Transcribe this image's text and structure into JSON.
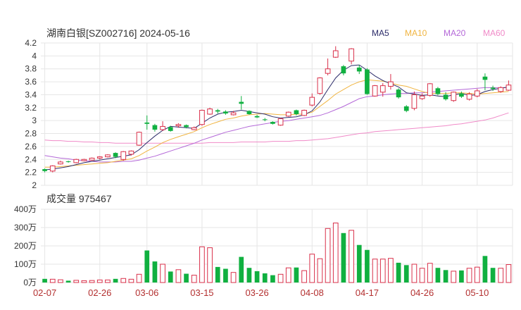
{
  "chart_data": {
    "type": "candlestick",
    "title": "湖南白银[SZ002716] 2024-05-16",
    "legend": [
      {
        "name": "MA5",
        "color": "#2c2c6a"
      },
      {
        "name": "MA10",
        "color": "#f0b440"
      },
      {
        "name": "MA20",
        "color": "#b468d8"
      },
      {
        "name": "MA60",
        "color": "#f08ac8"
      }
    ],
    "colors": {
      "up": "#d9304a",
      "down": "#10b040",
      "grid": "#e6e6e6",
      "date_text": "#b33030"
    },
    "price_axis": {
      "ticks": [
        "4.2",
        "4",
        "3.8",
        "3.6",
        "3.4",
        "3.2",
        "3",
        "2.8",
        "2.6",
        "2.4",
        "2.2",
        "2"
      ],
      "min": 2,
      "max": 4.2
    },
    "volume_title": "成交量 975467",
    "volume_axis": {
      "ticks": [
        "400万",
        "300万",
        "200万",
        "100万",
        "0万"
      ],
      "min": 0,
      "max": 400
    },
    "x_labels": [
      {
        "label": "02-07",
        "index": 0
      },
      {
        "label": "02-26",
        "index": 7
      },
      {
        "label": "03-06",
        "index": 13
      },
      {
        "label": "03-15",
        "index": 20
      },
      {
        "label": "03-26",
        "index": 27
      },
      {
        "label": "04-08",
        "index": 34
      },
      {
        "label": "04-17",
        "index": 41
      },
      {
        "label": "04-26",
        "index": 48
      },
      {
        "label": "05-10",
        "index": 55
      }
    ],
    "candles": [
      [
        2.22,
        2.25,
        2.2,
        2.26,
        "down",
        20
      ],
      [
        2.22,
        2.3,
        2.2,
        2.31,
        "up",
        18
      ],
      [
        2.33,
        2.36,
        2.32,
        2.38,
        "up",
        15
      ],
      [
        2.36,
        2.37,
        2.35,
        2.38,
        "down",
        10
      ],
      [
        2.35,
        2.4,
        2.34,
        2.41,
        "up",
        12
      ],
      [
        2.38,
        2.4,
        2.37,
        2.41,
        "up",
        10
      ],
      [
        2.39,
        2.42,
        2.38,
        2.43,
        "up",
        11
      ],
      [
        2.42,
        2.44,
        2.4,
        2.45,
        "up",
        14
      ],
      [
        2.44,
        2.47,
        2.43,
        2.48,
        "up",
        14
      ],
      [
        2.5,
        2.44,
        2.42,
        2.51,
        "down",
        20
      ],
      [
        2.4,
        2.52,
        2.38,
        2.53,
        "up",
        22
      ],
      [
        2.48,
        2.53,
        2.46,
        2.54,
        "up",
        18
      ],
      [
        2.62,
        2.82,
        2.61,
        2.83,
        "up",
        45
      ],
      [
        2.97,
        2.95,
        2.86,
        3.08,
        "down",
        175
      ],
      [
        2.93,
        2.86,
        2.83,
        2.95,
        "down",
        115
      ],
      [
        2.86,
        2.91,
        2.84,
        2.99,
        "up",
        100
      ],
      [
        2.9,
        2.84,
        2.83,
        2.92,
        "down",
        60
      ],
      [
        2.92,
        2.94,
        2.89,
        2.96,
        "up",
        70
      ],
      [
        2.93,
        2.9,
        2.88,
        2.94,
        "down",
        48
      ],
      [
        2.86,
        2.89,
        2.85,
        2.91,
        "up",
        40
      ],
      [
        2.94,
        3.16,
        2.92,
        3.17,
        "up",
        195
      ],
      [
        3.1,
        3.18,
        3.09,
        3.2,
        "up",
        190
      ],
      [
        3.16,
        3.14,
        3.11,
        3.18,
        "down",
        85
      ],
      [
        3.14,
        3.11,
        3.09,
        3.16,
        "down",
        75
      ],
      [
        3.09,
        3.12,
        3.08,
        3.15,
        "up",
        55
      ],
      [
        3.29,
        3.26,
        3.17,
        3.38,
        "down",
        140
      ],
      [
        3.15,
        3.1,
        3.09,
        3.16,
        "down",
        80
      ],
      [
        3.07,
        3.05,
        3.04,
        3.09,
        "down",
        62
      ],
      [
        3.02,
        3.01,
        2.99,
        3.04,
        "down",
        50
      ],
      [
        2.98,
        2.95,
        2.94,
        2.99,
        "down",
        40
      ],
      [
        2.93,
        3.03,
        2.92,
        3.04,
        "up",
        45
      ],
      [
        3.07,
        3.13,
        3.06,
        3.14,
        "up",
        80
      ],
      [
        3.16,
        3.1,
        3.08,
        3.17,
        "down",
        82
      ],
      [
        3.08,
        3.16,
        3.07,
        3.17,
        "up",
        65
      ],
      [
        3.24,
        3.36,
        3.22,
        3.42,
        "up",
        155
      ],
      [
        3.42,
        3.66,
        3.4,
        3.67,
        "up",
        130
      ],
      [
        3.73,
        3.8,
        3.7,
        3.96,
        "up",
        295
      ],
      [
        3.98,
        4.08,
        3.97,
        4.15,
        "up",
        325
      ],
      [
        3.84,
        3.73,
        3.7,
        3.86,
        "down",
        270
      ],
      [
        3.92,
        4.11,
        3.87,
        4.12,
        "up",
        285
      ],
      [
        3.82,
        3.76,
        3.72,
        3.86,
        "down",
        205
      ],
      [
        3.79,
        3.41,
        3.4,
        3.81,
        "down",
        178
      ],
      [
        3.38,
        3.54,
        3.37,
        3.55,
        "up",
        128
      ],
      [
        3.44,
        3.54,
        3.37,
        3.58,
        "up",
        128
      ],
      [
        3.53,
        3.6,
        3.48,
        3.72,
        "up",
        132
      ],
      [
        3.48,
        3.36,
        3.34,
        3.5,
        "down",
        108
      ],
      [
        3.22,
        3.15,
        3.13,
        3.24,
        "down",
        95
      ],
      [
        3.19,
        3.4,
        3.16,
        3.45,
        "up",
        100
      ],
      [
        3.34,
        3.38,
        3.32,
        3.42,
        "up",
        78
      ],
      [
        3.39,
        3.57,
        3.37,
        3.58,
        "up",
        105
      ],
      [
        3.5,
        3.41,
        3.39,
        3.52,
        "down",
        80
      ],
      [
        3.4,
        3.33,
        3.31,
        3.44,
        "down",
        68
      ],
      [
        3.31,
        3.44,
        3.29,
        3.45,
        "up",
        62
      ],
      [
        3.42,
        3.37,
        3.35,
        3.45,
        "down",
        66
      ],
      [
        3.33,
        3.41,
        3.31,
        3.44,
        "up",
        78
      ],
      [
        3.38,
        3.46,
        3.36,
        3.49,
        "up",
        84
      ],
      [
        3.68,
        3.63,
        3.47,
        3.73,
        "down",
        145
      ],
      [
        3.51,
        3.49,
        3.46,
        3.54,
        "down",
        80
      ],
      [
        3.45,
        3.51,
        3.43,
        3.53,
        "up",
        78
      ],
      [
        3.47,
        3.55,
        3.46,
        3.62,
        "up",
        98
      ]
    ],
    "ma5": [
      2.24,
      2.25,
      2.27,
      2.29,
      2.32,
      2.35,
      2.37,
      2.39,
      2.41,
      2.43,
      2.45,
      2.47,
      2.55,
      2.66,
      2.76,
      2.85,
      2.91,
      2.9,
      2.89,
      2.88,
      2.96,
      3.04,
      3.1,
      3.13,
      3.14,
      3.16,
      3.14,
      3.12,
      3.1,
      3.06,
      3.04,
      3.05,
      3.06,
      3.09,
      3.15,
      3.29,
      3.48,
      3.66,
      3.78,
      3.85,
      3.86,
      3.78,
      3.69,
      3.62,
      3.57,
      3.52,
      3.43,
      3.41,
      3.39,
      3.4,
      3.38,
      3.37,
      3.4,
      3.42,
      3.39,
      3.4,
      3.45,
      3.48,
      3.5,
      3.52
    ],
    "ma10": [
      2.28,
      2.28,
      2.29,
      2.3,
      2.31,
      2.32,
      2.33,
      2.34,
      2.35,
      2.37,
      2.39,
      2.41,
      2.46,
      2.53,
      2.59,
      2.66,
      2.71,
      2.75,
      2.79,
      2.83,
      2.89,
      2.94,
      2.98,
      3.02,
      3.04,
      3.07,
      3.09,
      3.1,
      3.11,
      3.1,
      3.09,
      3.09,
      3.1,
      3.1,
      3.13,
      3.22,
      3.31,
      3.41,
      3.48,
      3.55,
      3.6,
      3.63,
      3.62,
      3.61,
      3.58,
      3.55,
      3.53,
      3.49,
      3.45,
      3.42,
      3.42,
      3.42,
      3.43,
      3.43,
      3.42,
      3.41,
      3.42,
      3.43,
      3.44,
      3.45
    ],
    "ma20": [
      2.46,
      2.44,
      2.42,
      2.41,
      2.39,
      2.38,
      2.37,
      2.36,
      2.36,
      2.36,
      2.37,
      2.37,
      2.39,
      2.42,
      2.45,
      2.49,
      2.53,
      2.57,
      2.61,
      2.65,
      2.7,
      2.74,
      2.78,
      2.82,
      2.85,
      2.88,
      2.91,
      2.93,
      2.95,
      2.97,
      2.99,
      3.0,
      3.02,
      3.04,
      3.06,
      3.08,
      3.12,
      3.17,
      3.22,
      3.28,
      3.34,
      3.37,
      3.38,
      3.4,
      3.41,
      3.42,
      3.42,
      3.43,
      3.43,
      3.44,
      3.45,
      3.46,
      3.47,
      3.48,
      3.49,
      3.5,
      3.51,
      3.51,
      3.51,
      3.51
    ],
    "ma60": [
      2.7,
      2.69,
      2.69,
      2.68,
      2.68,
      2.67,
      2.67,
      2.66,
      2.66,
      2.65,
      2.65,
      2.65,
      2.65,
      2.65,
      2.65,
      2.65,
      2.65,
      2.65,
      2.65,
      2.65,
      2.65,
      2.66,
      2.66,
      2.66,
      2.66,
      2.67,
      2.67,
      2.67,
      2.67,
      2.68,
      2.68,
      2.68,
      2.69,
      2.69,
      2.7,
      2.71,
      2.72,
      2.74,
      2.76,
      2.78,
      2.8,
      2.81,
      2.83,
      2.84,
      2.85,
      2.86,
      2.87,
      2.88,
      2.89,
      2.9,
      2.91,
      2.92,
      2.94,
      2.95,
      2.97,
      2.99,
      3.01,
      3.04,
      3.08,
      3.12
    ]
  }
}
